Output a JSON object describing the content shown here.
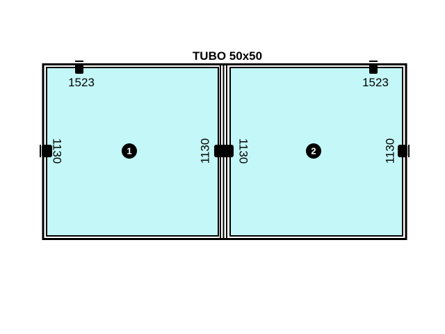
{
  "title": "TUBO 50x50",
  "colors": {
    "frame": "#000000",
    "glass": "#c4f7f7",
    "background": "#ffffff",
    "badge_text": "#ffffff"
  },
  "panels": [
    {
      "number": "1",
      "width_label": "1523",
      "left_height_label": "1130",
      "right_height_label": "1130"
    },
    {
      "number": "2",
      "width_label": "1523",
      "left_height_label": "1130",
      "right_height_label": "1130"
    }
  ]
}
